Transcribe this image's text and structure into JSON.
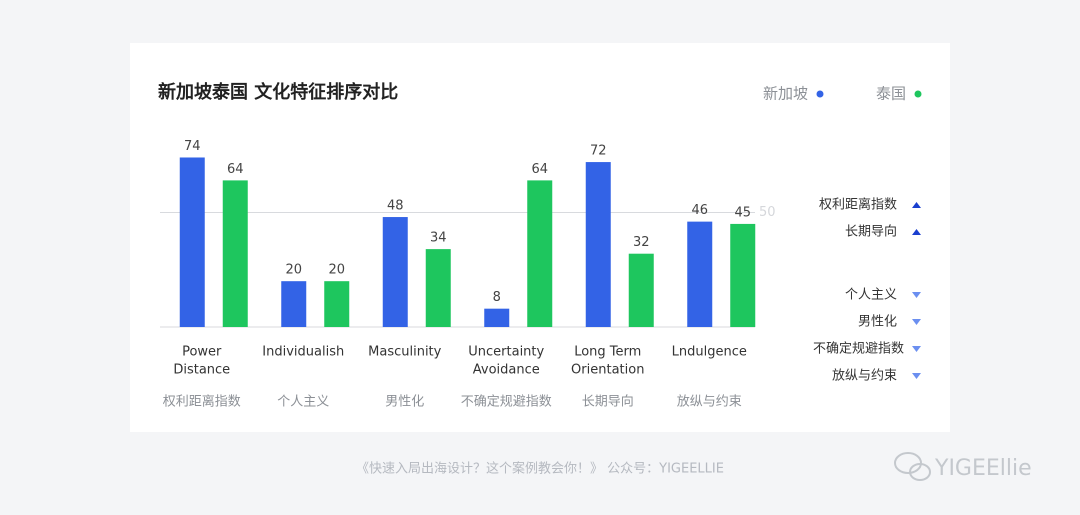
{
  "chart_data": {
    "type": "bar",
    "title": "新加坡泰国 文化特征排序对比",
    "categories": [
      [
        "Power",
        "Distance"
      ],
      [
        "Individualish"
      ],
      [
        "Masculinity"
      ],
      [
        "Uncertainty",
        "Avoidance"
      ],
      [
        "Long Term",
        "Orientation"
      ],
      [
        "Lndulgence"
      ]
    ],
    "categories_cn": [
      "权利距离指数",
      "个人主义",
      "男性化",
      "不确定规避指数",
      "长期导向",
      "放纵与约束"
    ],
    "series": [
      {
        "name": "新加坡",
        "color": "#3363e6",
        "values": [
          74,
          20,
          48,
          8,
          72,
          46
        ]
      },
      {
        "name": "泰国",
        "color": "#1ec65e",
        "values": [
          64,
          20,
          34,
          64,
          32,
          45
        ]
      }
    ],
    "ylim": [
      0,
      86
    ],
    "yticks": [
      50
    ],
    "grid": true,
    "ranking": {
      "above": [
        "权利距离指数",
        "长期导向"
      ],
      "below": [
        "个人主义",
        "男性化",
        "不确定规避指数",
        "放纵与约束"
      ]
    }
  },
  "footer": "《快速入局出海设计？这个案例教会你！》 公众号：YIGEELLIE",
  "watermark": "YIGEEllie"
}
